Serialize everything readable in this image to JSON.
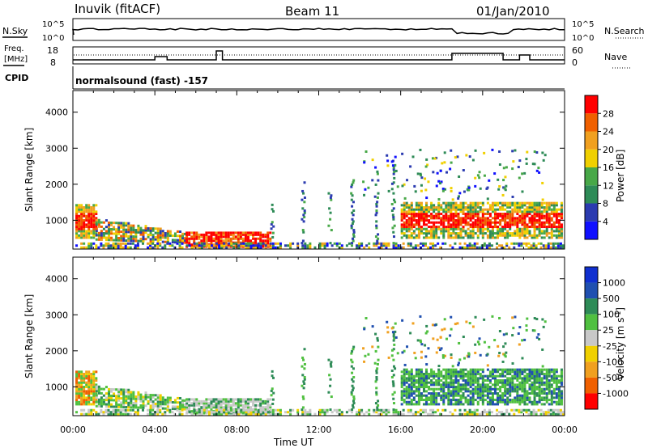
{
  "header": {
    "radar": "Inuvik (fitACF)",
    "beam": "Beam 11",
    "date": "01/Jan/2010"
  },
  "top_panels": {
    "nsky_label": "N.Sky",
    "nsky_ticks": [
      "10^5",
      "10^0"
    ],
    "nsearch_label": "N.Search",
    "nsearch_ticks": [
      "10^5",
      "10^0"
    ],
    "freq_label": "Freq.",
    "freq_unit": "[MHz]",
    "freq_ticks": [
      "18",
      "8"
    ],
    "nave_label": "Nave",
    "nave_ticks": [
      "60",
      "0"
    ],
    "cpid_label": "CPID",
    "cpid_text": "normalsound (fast) -157"
  },
  "colors": {
    "power": [
      "#1010ff",
      "#2b3bb0",
      "#2e8b57",
      "#48a848",
      "#f0d000",
      "#f0a020",
      "#f06000",
      "#ff0000"
    ],
    "velocity": [
      "#1030d0",
      "#2050b0",
      "#2e8b57",
      "#50c040",
      "#c8c8c8",
      "#f0d000",
      "#f0a020",
      "#f06000",
      "#ff0000"
    ]
  },
  "chart_data": [
    {
      "type": "heatmap",
      "title": "",
      "xlabel": "Time UT",
      "ylabel": "Slant Range [km]",
      "xlim": [
        "00:00",
        "24:00"
      ],
      "ylim": [
        200,
        4600
      ],
      "x_ticks": [
        "00:00",
        "04:00",
        "08:00",
        "12:00",
        "16:00",
        "20:00",
        "00:00"
      ],
      "y_ticks": [
        "1000",
        "2000",
        "3000",
        "4000"
      ],
      "colorbar": {
        "label": "Power [dB]",
        "ticks": [
          "4",
          "8",
          "12",
          "16",
          "20",
          "24",
          "28"
        ],
        "range": [
          0,
          32
        ]
      },
      "regions": [
        {
          "t0": 0.0,
          "t1": 1.0,
          "r0": 600,
          "r1": 1500,
          "level": "high"
        },
        {
          "t0": 1.0,
          "t1": 5.5,
          "r0": 500,
          "r1": 1100,
          "level": "medium"
        },
        {
          "t0": 5.5,
          "t1": 9.5,
          "r0": 300,
          "r1": 700,
          "level": "high"
        },
        {
          "t0": 16.0,
          "t1": 24.0,
          "r0": 600,
          "r1": 1500,
          "level": "high"
        }
      ]
    },
    {
      "type": "heatmap",
      "title": "",
      "xlabel": "Time UT",
      "ylabel": "Slant Range [km]",
      "xlim": [
        "00:00",
        "24:00"
      ],
      "ylim": [
        200,
        4600
      ],
      "x_ticks": [
        "00:00",
        "04:00",
        "08:00",
        "12:00",
        "16:00",
        "20:00",
        "00:00"
      ],
      "y_ticks": [
        "1000",
        "2000",
        "3000",
        "4000"
      ],
      "colorbar": {
        "label": "Velocity [m s^-1]",
        "ticks": [
          "1000",
          "500",
          "100",
          "25",
          "-25",
          "-100",
          "-500",
          "-1000"
        ],
        "range": [
          -1500,
          1500
        ]
      }
    }
  ]
}
